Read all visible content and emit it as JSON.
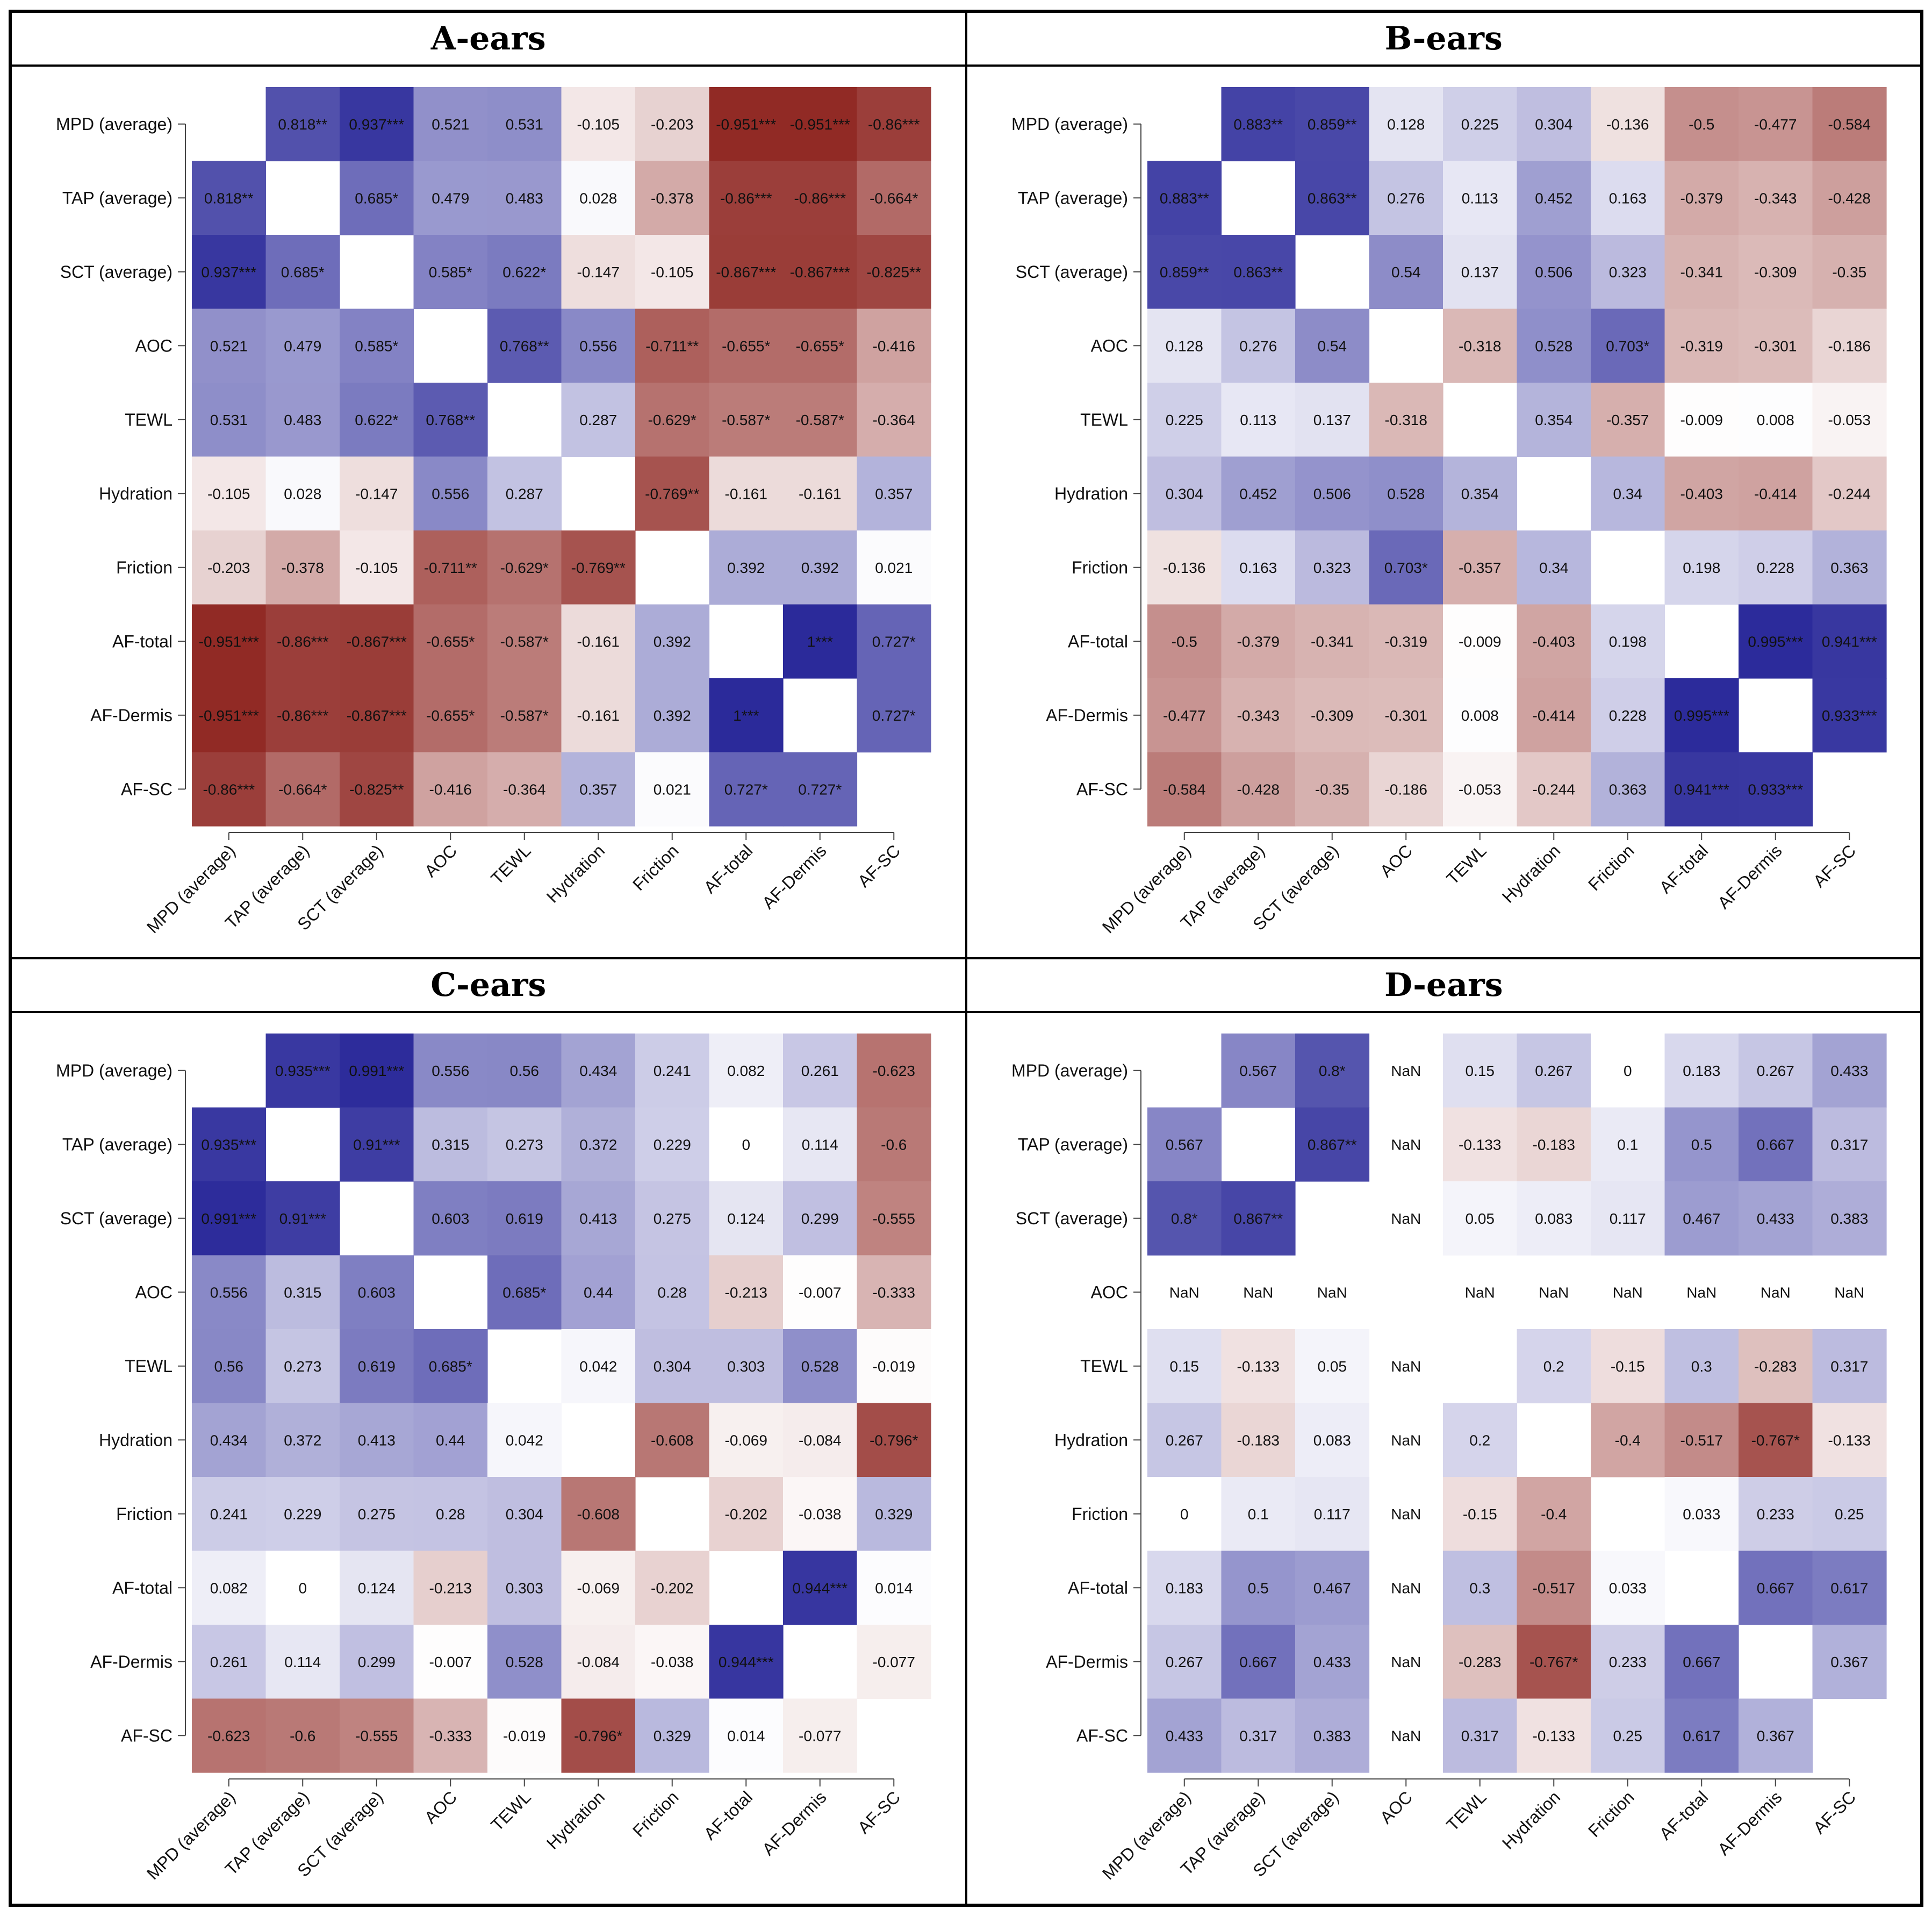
{
  "chart_data": [
    {
      "type": "heatmap",
      "title": "A-ears",
      "labels": [
        "MPD (average)",
        "TAP (average)",
        "SCT (average)",
        "AOC",
        "TEWL",
        "Hydration",
        "Friction",
        "AF-total",
        "AF-Dermis",
        "AF-SC"
      ],
      "values": [
        [
          null,
          0.818,
          0.937,
          0.521,
          0.531,
          -0.105,
          -0.203,
          -0.951,
          -0.951,
          -0.86
        ],
        [
          0.818,
          null,
          0.685,
          0.479,
          0.483,
          0.028,
          -0.378,
          -0.86,
          -0.86,
          -0.664
        ],
        [
          0.937,
          0.685,
          null,
          0.585,
          0.622,
          -0.147,
          -0.105,
          -0.867,
          -0.867,
          -0.825
        ],
        [
          0.521,
          0.479,
          0.585,
          null,
          0.768,
          0.556,
          -0.711,
          -0.655,
          -0.655,
          -0.416
        ],
        [
          0.531,
          0.483,
          0.622,
          0.768,
          null,
          0.287,
          -0.629,
          -0.587,
          -0.587,
          -0.364
        ],
        [
          -0.105,
          0.028,
          -0.147,
          0.556,
          0.287,
          null,
          -0.769,
          -0.161,
          -0.161,
          0.357
        ],
        [
          -0.203,
          -0.378,
          -0.105,
          -0.711,
          -0.629,
          -0.769,
          null,
          0.392,
          0.392,
          0.021
        ],
        [
          -0.951,
          -0.86,
          -0.867,
          -0.655,
          -0.587,
          -0.161,
          0.392,
          null,
          1,
          0.727
        ],
        [
          -0.951,
          -0.86,
          -0.867,
          -0.655,
          -0.587,
          -0.161,
          0.392,
          1,
          null,
          0.727
        ],
        [
          -0.86,
          -0.664,
          -0.825,
          -0.416,
          -0.364,
          0.357,
          0.021,
          0.727,
          0.727,
          null
        ]
      ],
      "cells": [
        [
          "",
          "0.818**",
          "0.937***",
          "0.521",
          "0.531",
          "-0.105",
          "-0.203",
          "-0.951***",
          "-0.951***",
          "-0.86***"
        ],
        [
          "0.818**",
          "",
          "0.685*",
          "0.479",
          "0.483",
          "0.028",
          "-0.378",
          "-0.86***",
          "-0.86***",
          "-0.664*"
        ],
        [
          "0.937***",
          "0.685*",
          "",
          "0.585*",
          "0.622*",
          "-0.147",
          "-0.105",
          "-0.867***",
          "-0.867***",
          "-0.825**"
        ],
        [
          "0.521",
          "0.479",
          "0.585*",
          "",
          "0.768**",
          "0.556",
          "-0.711**",
          "-0.655*",
          "-0.655*",
          "-0.416"
        ],
        [
          "0.531",
          "0.483",
          "0.622*",
          "0.768**",
          "",
          "0.287",
          "-0.629*",
          "-0.587*",
          "-0.587*",
          "-0.364"
        ],
        [
          "-0.105",
          "0.028",
          "-0.147",
          "0.556",
          "0.287",
          "",
          "-0.769**",
          "-0.161",
          "-0.161",
          "0.357"
        ],
        [
          "-0.203",
          "-0.378",
          "-0.105",
          "-0.711**",
          "-0.629*",
          "-0.769**",
          "",
          "0.392",
          "0.392",
          "0.021"
        ],
        [
          "-0.951***",
          "-0.86***",
          "-0.867***",
          "-0.655*",
          "-0.587*",
          "-0.161",
          "0.392",
          "",
          "1***",
          "0.727*"
        ],
        [
          "-0.951***",
          "-0.86***",
          "-0.867***",
          "-0.655*",
          "-0.587*",
          "-0.161",
          "0.392",
          "1***",
          "",
          "0.727*"
        ],
        [
          "-0.86***",
          "-0.664*",
          "-0.825**",
          "-0.416",
          "-0.364",
          "0.357",
          "0.021",
          "0.727*",
          "0.727*",
          ""
        ]
      ]
    },
    {
      "type": "heatmap",
      "title": "B-ears",
      "labels": [
        "MPD (average)",
        "TAP (average)",
        "SCT (average)",
        "AOC",
        "TEWL",
        "Hydration",
        "Friction",
        "AF-total",
        "AF-Dermis",
        "AF-SC"
      ],
      "values": [
        [
          null,
          0.883,
          0.859,
          0.128,
          0.225,
          0.304,
          -0.136,
          -0.5,
          -0.477,
          -0.584
        ],
        [
          0.883,
          null,
          0.863,
          0.276,
          0.113,
          0.452,
          0.163,
          -0.379,
          -0.343,
          -0.428
        ],
        [
          0.859,
          0.863,
          null,
          0.54,
          0.137,
          0.506,
          0.323,
          -0.341,
          -0.309,
          -0.35
        ],
        [
          0.128,
          0.276,
          0.54,
          null,
          -0.318,
          0.528,
          0.703,
          -0.319,
          -0.301,
          -0.186
        ],
        [
          0.225,
          0.113,
          0.137,
          -0.318,
          null,
          0.354,
          -0.357,
          -0.009,
          0.008,
          -0.053
        ],
        [
          0.304,
          0.452,
          0.506,
          0.528,
          0.354,
          null,
          0.34,
          -0.403,
          -0.414,
          -0.244
        ],
        [
          -0.136,
          0.163,
          0.323,
          0.703,
          -0.357,
          0.34,
          null,
          0.198,
          0.228,
          0.363
        ],
        [
          -0.5,
          -0.379,
          -0.341,
          -0.319,
          -0.009,
          -0.403,
          0.198,
          null,
          0.995,
          0.941
        ],
        [
          -0.477,
          -0.343,
          -0.309,
          -0.301,
          0.008,
          -0.414,
          0.228,
          0.995,
          null,
          0.933
        ],
        [
          -0.584,
          -0.428,
          -0.35,
          -0.186,
          -0.053,
          -0.244,
          0.363,
          0.941,
          0.933,
          null
        ]
      ],
      "cells": [
        [
          "",
          "0.883**",
          "0.859**",
          "0.128",
          "0.225",
          "0.304",
          "-0.136",
          "-0.5",
          "-0.477",
          "-0.584"
        ],
        [
          "0.883**",
          "",
          "0.863**",
          "0.276",
          "0.113",
          "0.452",
          "0.163",
          "-0.379",
          "-0.343",
          "-0.428"
        ],
        [
          "0.859**",
          "0.863**",
          "",
          "0.54",
          "0.137",
          "0.506",
          "0.323",
          "-0.341",
          "-0.309",
          "-0.35"
        ],
        [
          "0.128",
          "0.276",
          "0.54",
          "",
          "-0.318",
          "0.528",
          "0.703*",
          "-0.319",
          "-0.301",
          "-0.186"
        ],
        [
          "0.225",
          "0.113",
          "0.137",
          "-0.318",
          "",
          "0.354",
          "-0.357",
          "-0.009",
          "0.008",
          "-0.053"
        ],
        [
          "0.304",
          "0.452",
          "0.506",
          "0.528",
          "0.354",
          "",
          "0.34",
          "-0.403",
          "-0.414",
          "-0.244"
        ],
        [
          "-0.136",
          "0.163",
          "0.323",
          "0.703*",
          "-0.357",
          "0.34",
          "",
          "0.198",
          "0.228",
          "0.363"
        ],
        [
          "-0.5",
          "-0.379",
          "-0.341",
          "-0.319",
          "-0.009",
          "-0.403",
          "0.198",
          "",
          "0.995***",
          "0.941***"
        ],
        [
          "-0.477",
          "-0.343",
          "-0.309",
          "-0.301",
          "0.008",
          "-0.414",
          "0.228",
          "0.995***",
          "",
          "0.933***"
        ],
        [
          "-0.584",
          "-0.428",
          "-0.35",
          "-0.186",
          "-0.053",
          "-0.244",
          "0.363",
          "0.941***",
          "0.933***",
          ""
        ]
      ]
    },
    {
      "type": "heatmap",
      "title": "C-ears",
      "labels": [
        "MPD (average)",
        "TAP (average)",
        "SCT (average)",
        "AOC",
        "TEWL",
        "Hydration",
        "Friction",
        "AF-total",
        "AF-Dermis",
        "AF-SC"
      ],
      "values": [
        [
          null,
          0.935,
          0.991,
          0.556,
          0.56,
          0.434,
          0.241,
          0.082,
          0.261,
          -0.623
        ],
        [
          0.935,
          null,
          0.91,
          0.315,
          0.273,
          0.372,
          0.229,
          0,
          0.114,
          -0.6
        ],
        [
          0.991,
          0.91,
          null,
          0.603,
          0.619,
          0.413,
          0.275,
          0.124,
          0.299,
          -0.555
        ],
        [
          0.556,
          0.315,
          0.603,
          null,
          0.685,
          0.44,
          0.28,
          -0.213,
          -0.007,
          -0.333
        ],
        [
          0.56,
          0.273,
          0.619,
          0.685,
          null,
          0.042,
          0.304,
          0.303,
          0.528,
          -0.019
        ],
        [
          0.434,
          0.372,
          0.413,
          0.44,
          0.042,
          null,
          -0.608,
          -0.069,
          -0.084,
          -0.796
        ],
        [
          0.241,
          0.229,
          0.275,
          0.28,
          0.304,
          -0.608,
          null,
          -0.202,
          -0.038,
          0.329
        ],
        [
          0.082,
          0,
          0.124,
          -0.213,
          0.303,
          -0.069,
          -0.202,
          null,
          0.944,
          0.014
        ],
        [
          0.261,
          0.114,
          0.299,
          -0.007,
          0.528,
          -0.084,
          -0.038,
          0.944,
          null,
          -0.077
        ],
        [
          -0.623,
          -0.6,
          -0.555,
          -0.333,
          -0.019,
          -0.796,
          0.329,
          0.014,
          -0.077,
          null
        ]
      ],
      "cells": [
        [
          "",
          "0.935***",
          "0.991***",
          "0.556",
          "0.56",
          "0.434",
          "0.241",
          "0.082",
          "0.261",
          "-0.623"
        ],
        [
          "0.935***",
          "",
          "0.91***",
          "0.315",
          "0.273",
          "0.372",
          "0.229",
          "0",
          "0.114",
          "-0.6"
        ],
        [
          "0.991***",
          "0.91***",
          "",
          "0.603",
          "0.619",
          "0.413",
          "0.275",
          "0.124",
          "0.299",
          "-0.555"
        ],
        [
          "0.556",
          "0.315",
          "0.603",
          "",
          "0.685*",
          "0.44",
          "0.28",
          "-0.213",
          "-0.007",
          "-0.333"
        ],
        [
          "0.56",
          "0.273",
          "0.619",
          "0.685*",
          "",
          "0.042",
          "0.304",
          "0.303",
          "0.528",
          "-0.019"
        ],
        [
          "0.434",
          "0.372",
          "0.413",
          "0.44",
          "0.042",
          "",
          "-0.608",
          "-0.069",
          "-0.084",
          "-0.796*"
        ],
        [
          "0.241",
          "0.229",
          "0.275",
          "0.28",
          "0.304",
          "-0.608",
          "",
          "-0.202",
          "-0.038",
          "0.329"
        ],
        [
          "0.082",
          "0",
          "0.124",
          "-0.213",
          "0.303",
          "-0.069",
          "-0.202",
          "",
          "0.944***",
          "0.014"
        ],
        [
          "0.261",
          "0.114",
          "0.299",
          "-0.007",
          "0.528",
          "-0.084",
          "-0.038",
          "0.944***",
          "",
          "-0.077"
        ],
        [
          "-0.623",
          "-0.6",
          "-0.555",
          "-0.333",
          "-0.019",
          "-0.796*",
          "0.329",
          "0.014",
          "-0.077",
          ""
        ]
      ]
    },
    {
      "type": "heatmap",
      "title": "D-ears",
      "labels": [
        "MPD (average)",
        "TAP (average)",
        "SCT (average)",
        "AOC",
        "TEWL",
        "Hydration",
        "Friction",
        "AF-total",
        "AF-Dermis",
        "AF-SC"
      ],
      "values": [
        [
          null,
          0.567,
          0.8,
          null,
          0.15,
          0.267,
          0,
          0.183,
          0.267,
          0.433
        ],
        [
          0.567,
          null,
          0.867,
          null,
          -0.133,
          -0.183,
          0.1,
          0.5,
          0.667,
          0.317
        ],
        [
          0.8,
          0.867,
          null,
          null,
          0.05,
          0.083,
          0.117,
          0.467,
          0.433,
          0.383
        ],
        [
          null,
          null,
          null,
          null,
          null,
          null,
          null,
          null,
          null,
          null
        ],
        [
          0.15,
          -0.133,
          0.05,
          null,
          null,
          0.2,
          -0.15,
          0.3,
          -0.283,
          0.317
        ],
        [
          0.267,
          -0.183,
          0.083,
          null,
          0.2,
          null,
          -0.4,
          -0.517,
          -0.767,
          -0.133
        ],
        [
          0,
          0.1,
          0.117,
          null,
          -0.15,
          -0.4,
          null,
          0.033,
          0.233,
          0.25
        ],
        [
          0.183,
          0.5,
          0.467,
          null,
          0.3,
          -0.517,
          0.033,
          null,
          0.667,
          0.617
        ],
        [
          0.267,
          0.667,
          0.433,
          null,
          -0.283,
          -0.767,
          0.233,
          0.667,
          null,
          0.367
        ],
        [
          0.433,
          0.317,
          0.383,
          null,
          0.317,
          -0.133,
          0.25,
          0.617,
          0.367,
          null
        ]
      ],
      "cells": [
        [
          "",
          "0.567",
          "0.8*",
          "NaN",
          "0.15",
          "0.267",
          "0",
          "0.183",
          "0.267",
          "0.433"
        ],
        [
          "0.567",
          "",
          "0.867**",
          "NaN",
          "-0.133",
          "-0.183",
          "0.1",
          "0.5",
          "0.667",
          "0.317"
        ],
        [
          "0.8*",
          "0.867**",
          "",
          "NaN",
          "0.05",
          "0.083",
          "0.117",
          "0.467",
          "0.433",
          "0.383"
        ],
        [
          "NaN",
          "NaN",
          "NaN",
          "",
          "NaN",
          "NaN",
          "NaN",
          "NaN",
          "NaN",
          "NaN"
        ],
        [
          "0.15",
          "-0.133",
          "0.05",
          "NaN",
          "",
          "0.2",
          "-0.15",
          "0.3",
          "-0.283",
          "0.317"
        ],
        [
          "0.267",
          "-0.183",
          "0.083",
          "NaN",
          "0.2",
          "",
          "-0.4",
          "-0.517",
          "-0.767*",
          "-0.133"
        ],
        [
          "0",
          "0.1",
          "0.117",
          "NaN",
          "-0.15",
          "-0.4",
          "",
          "0.033",
          "0.233",
          "0.25"
        ],
        [
          "0.183",
          "0.5",
          "0.467",
          "NaN",
          "0.3",
          "-0.517",
          "0.033",
          "",
          "0.667",
          "0.617"
        ],
        [
          "0.267",
          "0.667",
          "0.433",
          "NaN",
          "-0.283",
          "-0.767*",
          "0.233",
          "0.667",
          "",
          "0.367"
        ],
        [
          "0.433",
          "0.317",
          "0.383",
          "NaN",
          "0.317",
          "-0.133",
          "0.25",
          "0.617",
          "0.367",
          ""
        ]
      ]
    }
  ],
  "colors": {
    "positive": "#2b2a9a",
    "negative": "#8b1f1a",
    "zero": "#ffffff",
    "text": "#111111"
  }
}
